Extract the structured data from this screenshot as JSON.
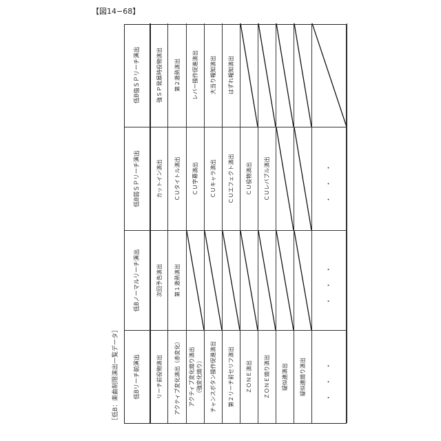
{
  "figure_label": "【図14−68】",
  "caption": "［低B：楽曲制限演出一覧データ］",
  "headers": [
    "低Bリーチ前演出",
    "低Bノーマルリーチ演出",
    "低B弱ＳＰリーチ演出",
    "低B強ＳＰリーチ演出"
  ],
  "rows": [
    [
      "リーチ前役物演出",
      "次回予告演出",
      "カットイン演出",
      "強ＳＰ発展時役物演出"
    ],
    [
      "アクティブ変化演出（赤変化）",
      "第１激熱演出",
      "ＣＵタイトル演出",
      "第２激熱演出"
    ],
    [
      "アクティブ変化煽り演出\n（強変化煽り）",
      null,
      "ＣＵ字幕演出",
      "レバー操作促進演出"
    ],
    [
      "チャンスボタン操作促進演出",
      null,
      "ＣＵキャラ演出",
      "大当り報知演出"
    ],
    [
      "第２リーチ前セリフ演出",
      null,
      "ＣＵエフェクト演出",
      "はずれ報知演出"
    ],
    [
      "ＺＯＮＥ演出",
      null,
      "ＣＵ役物演出",
      null
    ],
    [
      "ＺＯＮＥ煽り演出",
      null,
      "ＣＵレバブル演出",
      null
    ],
    [
      "疑似連演出",
      null,
      null,
      null
    ],
    [
      "疑似連煽り演出",
      null,
      null,
      null
    ],
    [
      "・・・",
      "・・・",
      "・・・",
      null
    ]
  ]
}
